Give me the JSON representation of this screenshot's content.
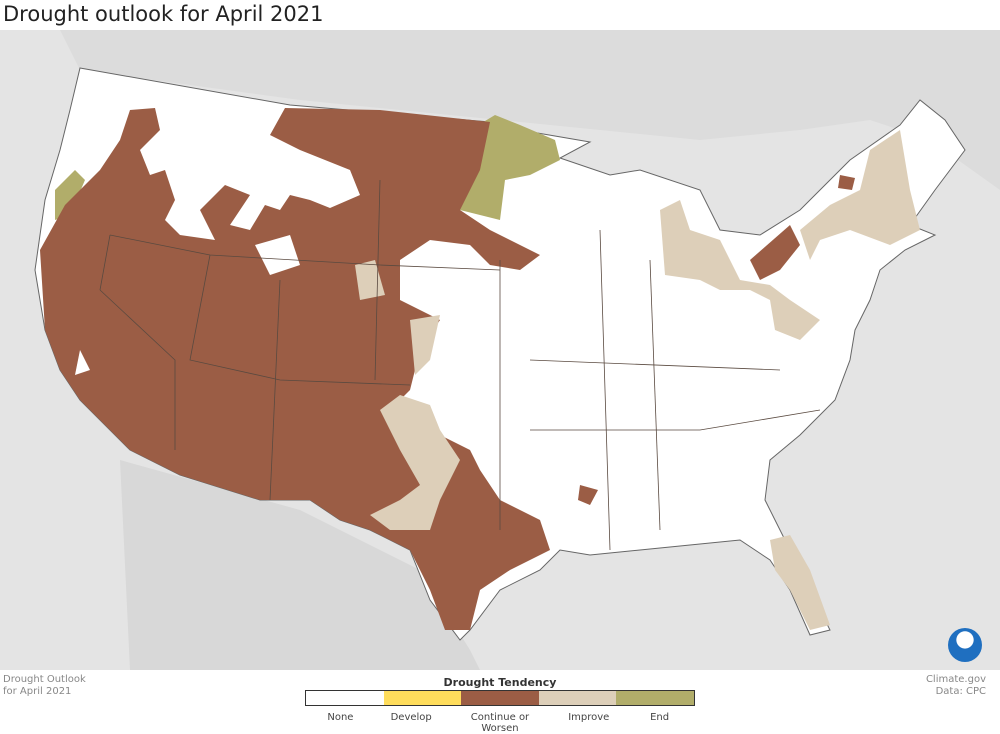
{
  "title": "Drought outlook for April 2021",
  "footer": {
    "left_line1": "Drought Outlook",
    "left_line2": "for April 2021",
    "right_line1": "Climate.gov",
    "right_line2": "Data: CPC"
  },
  "logo": "NOAA",
  "legend": {
    "title": "Drought Tendency",
    "items": [
      {
        "label": "None",
        "color": "#ffffff"
      },
      {
        "label": "Develop",
        "color": "#ffdd5c"
      },
      {
        "label": "Continue or Worsen",
        "color": "#9b5d45"
      },
      {
        "label": "Improve",
        "color": "#ddcfb9"
      },
      {
        "label": "End",
        "color": "#b1ad6a"
      }
    ]
  },
  "colors": {
    "background": "#e4e4e4",
    "land": "#ffffff",
    "borders": "#5a4a40"
  }
}
